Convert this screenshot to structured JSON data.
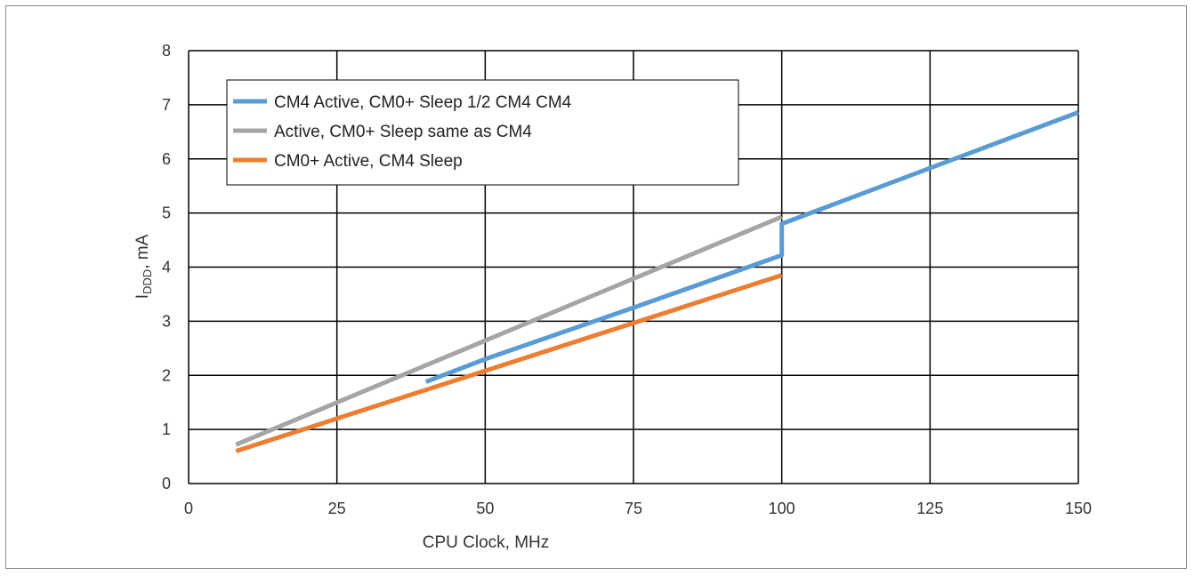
{
  "chart_data": {
    "type": "line",
    "title": "",
    "xlabel": "CPU Clock, MHz",
    "ylabel_main": "I",
    "ylabel_sub": "DDD",
    "ylabel_suffix": ", mA",
    "xlim": [
      0,
      150
    ],
    "ylim": [
      0,
      8
    ],
    "x_ticks": [
      0,
      25,
      50,
      75,
      100,
      125,
      150
    ],
    "y_ticks": [
      0,
      1,
      2,
      3,
      4,
      5,
      6,
      7,
      8
    ],
    "grid": true,
    "legend_position": "top-left",
    "series": [
      {
        "name": "CM4 Active, CM0+ Sleep 1/2 CM4 CM4",
        "color": "#5b9bd5",
        "points": [
          [
            40,
            1.88
          ],
          [
            50,
            2.3
          ],
          [
            75,
            3.25
          ],
          [
            100,
            4.22
          ],
          [
            100,
            4.8
          ],
          [
            150,
            6.86
          ]
        ]
      },
      {
        "name": "Active, CM0+ Sleep same as CM4",
        "color": "#a5a5a5",
        "points": [
          [
            8,
            0.72
          ],
          [
            100,
            4.93
          ]
        ]
      },
      {
        "name": "CM0+ Active, CM4 Sleep",
        "color": "#ed7d31",
        "points": [
          [
            8,
            0.6
          ],
          [
            100,
            3.85
          ]
        ]
      }
    ]
  }
}
